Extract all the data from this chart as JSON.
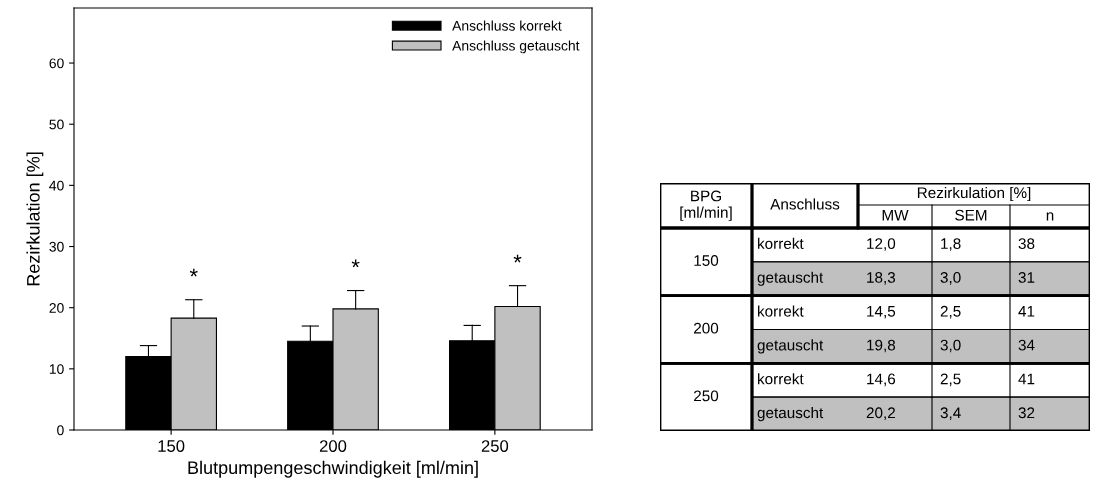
{
  "chart_data": [
    {
      "type": "bar",
      "xlabel": "Blutpumpengeschwindigkeit [ml/min]",
      "ylabel": "Rezirkulation [%]",
      "categories": [
        "150",
        "200",
        "250"
      ],
      "series": [
        {
          "name": "Anschluss korrekt",
          "color": "#000000",
          "values": [
            12.0,
            14.5,
            14.6
          ],
          "errors": [
            [
              12.0,
              13.8
            ],
            [
              14.5,
              17.0
            ],
            [
              14.6,
              17.1
            ]
          ]
        },
        {
          "name": "Anschluss getauscht",
          "color": "#c0c0c0",
          "values": [
            18.3,
            19.8,
            20.2
          ],
          "errors": [
            [
              18.3,
              21.3
            ],
            [
              19.8,
              22.8
            ],
            [
              20.2,
              23.6
            ]
          ]
        }
      ],
      "ylim": [
        0,
        69
      ],
      "yticks": [
        0,
        10,
        20,
        30,
        40,
        50,
        60
      ],
      "legend": "top right",
      "annotations": [
        "*",
        "*",
        "*"
      ]
    },
    {
      "type": "other",
      "annotations": [
        "BPG\n[ml/min]",
        "Anschluss",
        "Rezirkulation [%]"
      ],
      "categories": [
        "MW",
        "SEM",
        "n"
      ],
      "y_categories": [
        "korrekt",
        "getauscht",
        "korrekt",
        "getauscht",
        "korrekt",
        "getauscht"
      ],
      "y2_categories": [
        "150",
        null,
        "200",
        null,
        "250",
        null
      ],
      "colors": [
        "#ffffff",
        "#c0c0c0",
        "#ffffff",
        "#c0c0c0",
        "#ffffff",
        "#c0c0c0"
      ],
      "cell_labels": [
        [
          "12,0",
          "1,8",
          "38"
        ],
        [
          "18,3",
          "3,0",
          "31"
        ],
        [
          "14,5",
          "2,5",
          "41"
        ],
        [
          "19,8",
          "3,0",
          "34"
        ],
        [
          "14,6",
          "2,5",
          "41"
        ],
        [
          "20,2",
          "3,4",
          "32"
        ]
      ]
    }
  ]
}
